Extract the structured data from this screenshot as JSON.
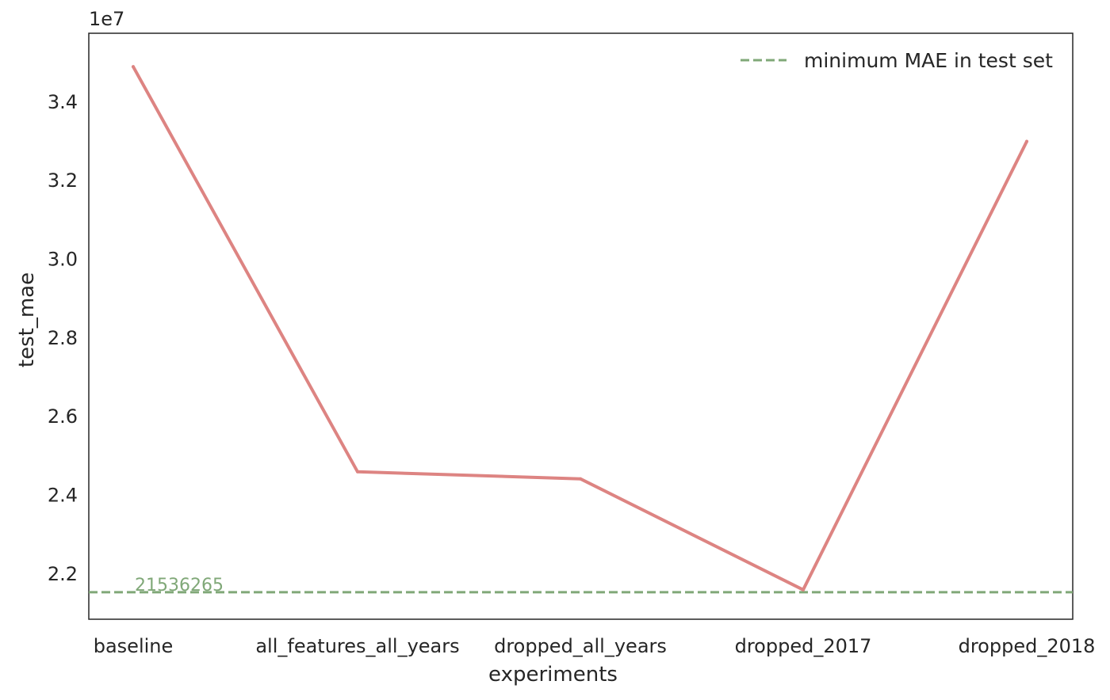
{
  "chart_data": {
    "type": "line",
    "categories": [
      "baseline",
      "all_features_all_years",
      "dropped_all_years",
      "dropped_2017",
      "dropped_2018"
    ],
    "series": [
      {
        "values": [
          34900000,
          24600000,
          24420000,
          21600000,
          33000000
        ],
        "color": "#dd8482"
      }
    ],
    "reference_line": {
      "value": 21536265,
      "label": "minimum MAE in test set",
      "annotation": "21536265",
      "color": "#80a878",
      "style": "dashed"
    },
    "xlabel": "experiments",
    "ylabel": "test_mae",
    "y_offset_text": "1e7",
    "ylim": [
      20850000,
      35750000
    ],
    "yticks": [
      22000000,
      24000000,
      26000000,
      28000000,
      30000000,
      32000000,
      34000000
    ],
    "ytick_labels": [
      "2.2",
      "2.4",
      "2.6",
      "2.8",
      "3.0",
      "3.2",
      "3.4"
    ],
    "grid": false,
    "legend": "top-right"
  }
}
